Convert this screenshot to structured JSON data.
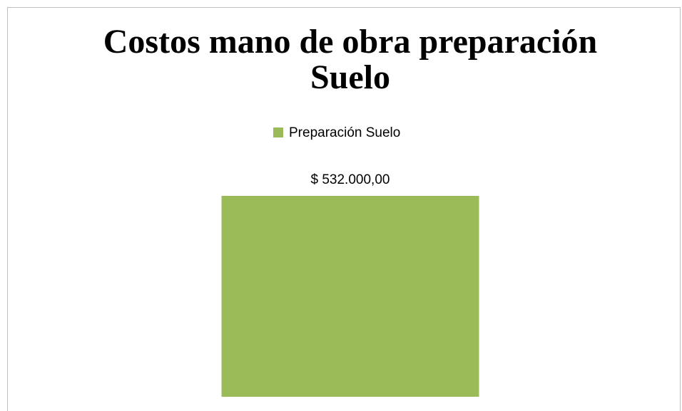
{
  "chart_data": {
    "type": "bar",
    "title": "Costos mano de obra preparación Suelo",
    "categories": [
      null
    ],
    "series": [
      {
        "name": "Preparación Suelo",
        "color": "#9bbb59",
        "values": [
          532000
        ],
        "value_labels": [
          "$ 532.000,00"
        ]
      }
    ],
    "legend": "top"
  }
}
